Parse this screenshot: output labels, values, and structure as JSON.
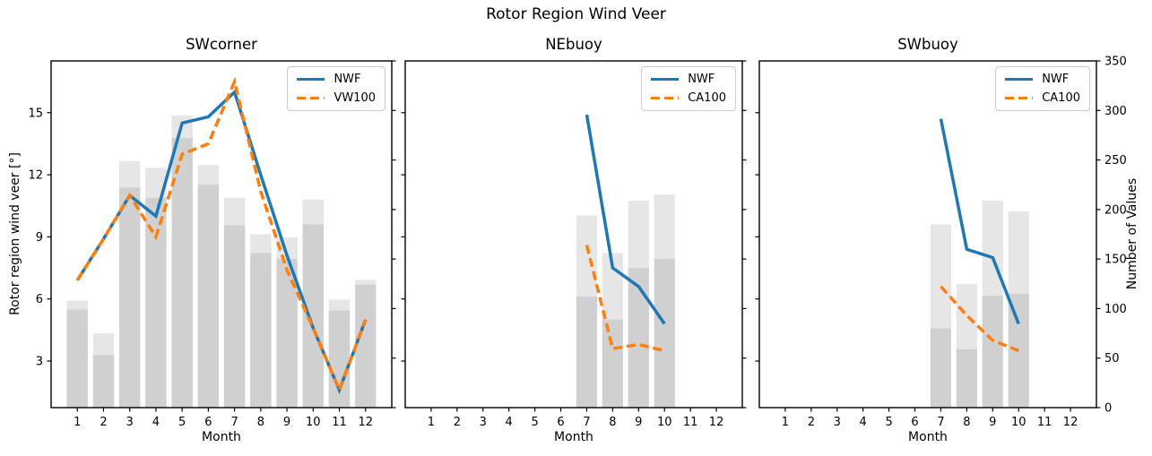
{
  "figure": {
    "suptitle": "Rotor Region Wind Veer"
  },
  "colors": {
    "nwf_line": "#1f77b4",
    "comparison_line": "#ff7f0e",
    "bar_light": "#e6e6e6",
    "bar_overlap": "#d0d0d0",
    "spine": "#000000",
    "legend_border": "#cbcbcb"
  },
  "axes": {
    "x": {
      "label": "Month",
      "ticks": [
        1,
        2,
        3,
        4,
        5,
        6,
        7,
        8,
        9,
        10,
        11,
        12
      ],
      "range": [
        0,
        13
      ]
    },
    "y_left": {
      "label": "Rotor region wind veer [°]",
      "ticks": [
        3,
        6,
        9,
        12,
        15
      ],
      "range": [
        0.75,
        17.5
      ]
    },
    "y_right": {
      "label": "Number of Values",
      "ticks": [
        0,
        50,
        100,
        150,
        200,
        250,
        300,
        350
      ],
      "range": [
        0,
        350
      ]
    }
  },
  "chart_data": [
    {
      "type": "line+bar",
      "title": "SWcorner",
      "legend_position": "upper right",
      "months": [
        1,
        2,
        3,
        4,
        5,
        6,
        7,
        8,
        9,
        10,
        11,
        12
      ],
      "series": [
        {
          "name": "NWF",
          "style": "solid",
          "color": "#1f77b4",
          "axis": "y_left",
          "values": [
            6.9,
            8.9,
            11.0,
            10.0,
            14.5,
            14.8,
            16.0,
            12.0,
            8.1,
            4.6,
            1.6,
            5.0
          ]
        },
        {
          "name": "VW100",
          "style": "dashed",
          "color": "#ff7f0e",
          "axis": "y_left",
          "values": [
            6.9,
            8.9,
            11.0,
            9.0,
            13.0,
            13.5,
            16.5,
            11.2,
            7.4,
            4.6,
            1.6,
            5.0
          ]
        }
      ],
      "bars": {
        "axis": "y_right",
        "months": [
          1,
          2,
          3,
          4,
          5,
          6,
          7,
          8,
          9,
          10,
          11,
          12
        ],
        "upper": [
          108,
          75,
          249,
          242,
          295,
          245,
          212,
          175,
          172,
          210,
          109,
          129
        ],
        "lower": [
          99,
          53,
          222,
          212,
          272,
          225,
          184,
          156,
          150,
          185,
          98,
          124
        ]
      },
      "show_left_tick_labels": true,
      "show_right_tick_labels": false
    },
    {
      "type": "line+bar",
      "title": "NEbuoy",
      "legend_position": "upper right",
      "months": [
        7,
        8,
        9,
        10
      ],
      "series": [
        {
          "name": "NWF",
          "style": "solid",
          "color": "#1f77b4",
          "axis": "y_left",
          "values": [
            14.9,
            7.5,
            6.6,
            4.8
          ]
        },
        {
          "name": "CA100",
          "style": "dashed",
          "color": "#ff7f0e",
          "axis": "y_left",
          "values": [
            8.6,
            3.6,
            3.8,
            3.5
          ]
        }
      ],
      "bars": {
        "axis": "y_right",
        "months": [
          7,
          8,
          9,
          10
        ],
        "upper": [
          194,
          156,
          209,
          215
        ],
        "lower": [
          112,
          89,
          141,
          150
        ]
      },
      "show_left_tick_labels": false,
      "show_right_tick_labels": false
    },
    {
      "type": "line+bar",
      "title": "SWbuoy",
      "legend_position": "upper right",
      "months": [
        7,
        8,
        9,
        10
      ],
      "series": [
        {
          "name": "NWF",
          "style": "solid",
          "color": "#1f77b4",
          "axis": "y_left",
          "values": [
            14.7,
            8.4,
            8.0,
            4.8
          ]
        },
        {
          "name": "CA100",
          "style": "dashed",
          "color": "#ff7f0e",
          "axis": "y_left",
          "values": [
            6.6,
            5.2,
            4.0,
            3.5
          ]
        }
      ],
      "bars": {
        "axis": "y_right",
        "months": [
          7,
          8,
          9,
          10
        ],
        "upper": [
          185,
          125,
          209,
          198
        ],
        "lower": [
          80,
          59,
          113,
          115
        ]
      },
      "show_left_tick_labels": false,
      "show_right_tick_labels": true
    }
  ]
}
